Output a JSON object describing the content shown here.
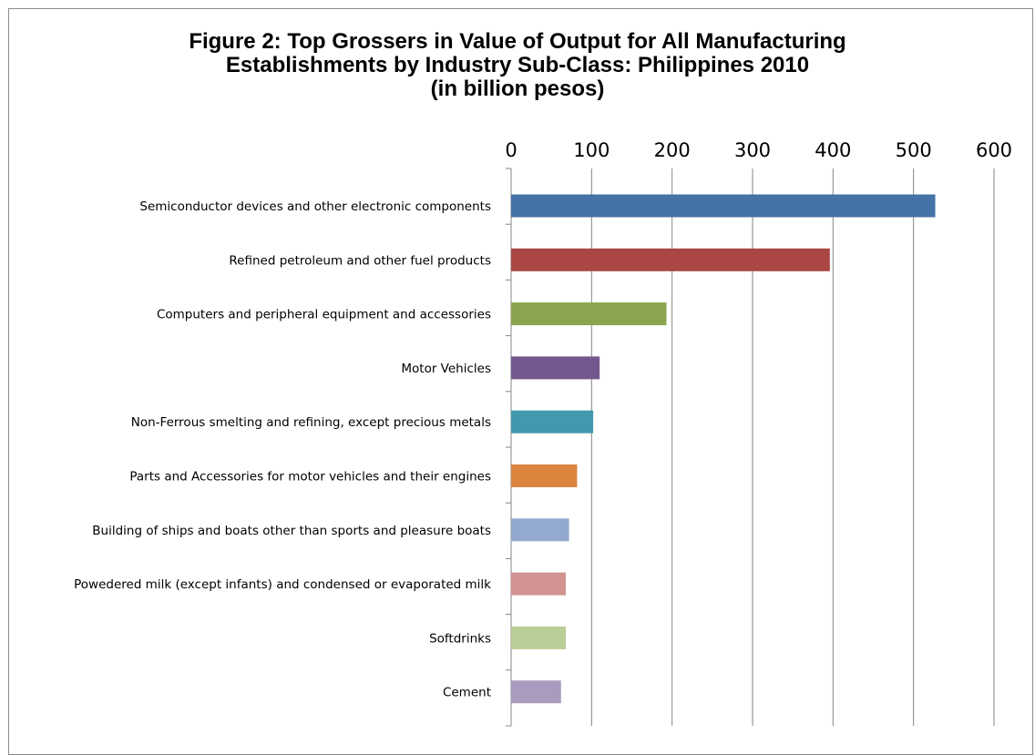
{
  "chart_data": {
    "type": "bar",
    "orientation": "horizontal",
    "title": [
      "Figure 2: Top Grossers in Value of Output for All Manufacturing",
      "Establishments by Industry Sub-Class: Philippines 2010",
      "(in billion pesos)"
    ],
    "xlabel": "",
    "ylabel": "",
    "xlim": [
      0,
      600
    ],
    "x_ticks": [
      0,
      100,
      200,
      300,
      400,
      500,
      600
    ],
    "x_axis_position": "top",
    "grid": true,
    "legend": "none",
    "categories": [
      "Semiconductor devices and other electronic components",
      "Refined petroleum and other fuel products",
      "Computers and peripheral equipment and accessories",
      "Motor Vehicles",
      "Non-Ferrous smelting and refining, except precious metals",
      "Parts and Accessories for motor vehicles and their engines",
      "Building of ships and boats other than sports and pleasure boats",
      "Powedered milk (except infants) and condensed or evaporated milk",
      "Softdrinks",
      "Cement"
    ],
    "values": [
      527,
      396,
      193,
      110,
      102,
      82,
      72,
      68,
      68,
      62
    ],
    "colors": [
      "#4572A7",
      "#AA4643",
      "#89A54E",
      "#71588F",
      "#4198AF",
      "#DB843D",
      "#93A9CF",
      "#D19392",
      "#B9CD96",
      "#A99BBD"
    ]
  }
}
